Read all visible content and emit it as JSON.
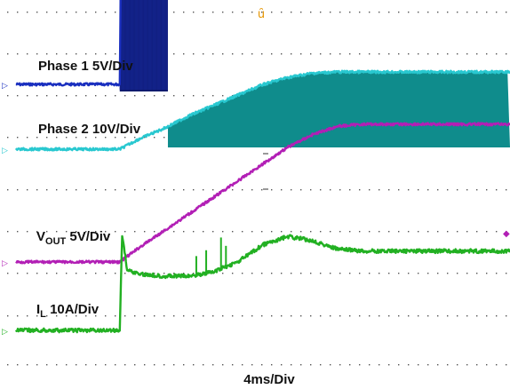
{
  "chart_data": {
    "type": "line",
    "instrument": "oscilloscope",
    "time_scale_label": "4ms/Div",
    "labels": {
      "phase1": "Phase 1 5V/Div",
      "phase2": "Phase 2 10V/Div",
      "vout_main": "V",
      "vout_sub": "OUT",
      "vout_scale": " 5V/Div",
      "il_main": "I",
      "il_sub": "L",
      "il_scale": " 10A/Div"
    },
    "grid": true,
    "x_divisions": 10,
    "y_divisions": 8,
    "x_unit_per_div_ms": 4,
    "trigger_marker": "ȗ",
    "series": [
      {
        "name": "Phase 1 5V/Div",
        "color": "#1a2fbf",
        "fill_color": "#0d1a6e",
        "scale_per_div": "5V",
        "t_ms": [
          0,
          8.4,
          8.5,
          10.6,
          10.7,
          40
        ],
        "v_div": [
          0,
          0,
          3.0,
          3.0,
          2.55,
          2.55
        ],
        "switching_band_ms": [
          8.4,
          12.3
        ]
      },
      {
        "name": "Phase 2 10V/Div",
        "color": "#29c8d0",
        "fill_color": "#0f8c8c",
        "scale_per_div": "10V",
        "t_ms": [
          0,
          8.4,
          10.0,
          12.0,
          14.0,
          16.0,
          18.0,
          20.0,
          22.0,
          24.0,
          26.0,
          28.0,
          30.0,
          40
        ],
        "v_div": [
          0,
          0,
          0.25,
          0.5,
          0.8,
          1.05,
          1.3,
          1.55,
          1.72,
          1.82,
          1.85,
          1.85,
          1.85,
          1.85
        ],
        "switching_band_ms": [
          12.3,
          40
        ]
      },
      {
        "name": "VOUT 5V/Div",
        "color": "#b21fb5",
        "scale_per_div": "5V",
        "t_ms": [
          0,
          8.4,
          10.0,
          12.0,
          14.0,
          16.0,
          18.0,
          20.0,
          22.0,
          24.0,
          26.0,
          28.0,
          40
        ],
        "v_div": [
          0,
          0,
          0.35,
          0.75,
          1.15,
          1.55,
          1.95,
          2.35,
          2.75,
          3.05,
          3.25,
          3.3,
          3.3
        ]
      },
      {
        "name": "IL 10A/Div",
        "color": "#22b022",
        "scale_per_div": "10A",
        "t_ms": [
          0,
          8.4,
          8.6,
          9.0,
          10.0,
          12.0,
          14.0,
          16.0,
          18.0,
          20.0,
          22.0,
          24.0,
          26.0,
          28.0,
          30.0,
          40
        ],
        "v_div": [
          0,
          0,
          2.3,
          1.45,
          1.35,
          1.3,
          1.3,
          1.4,
          1.65,
          2.05,
          2.25,
          2.15,
          1.95,
          1.9,
          1.9,
          1.9
        ]
      }
    ]
  }
}
